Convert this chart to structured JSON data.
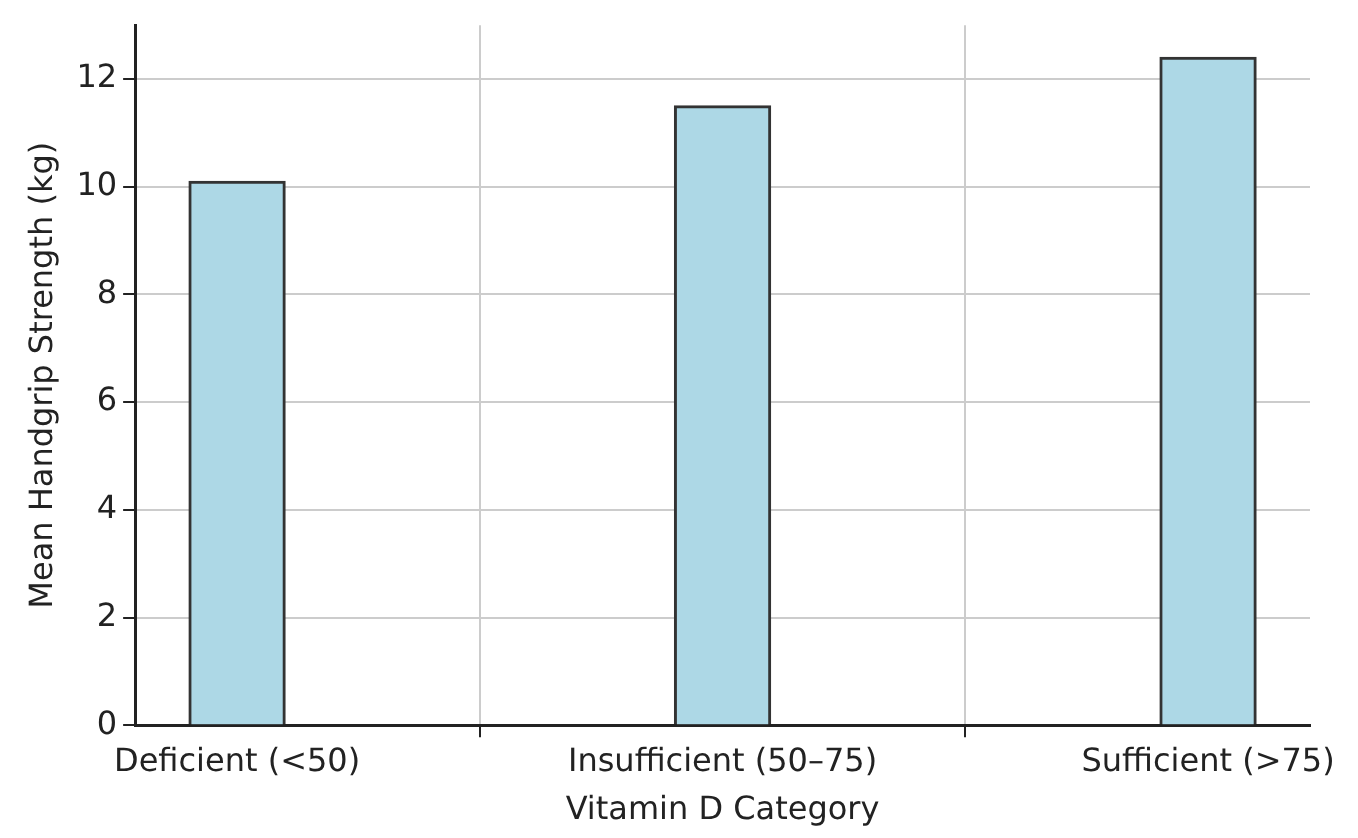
{
  "chart_data": {
    "type": "bar",
    "xlabel": "Vitamin D Category",
    "ylabel": "Mean Handgrip Strength (kg)",
    "categories": [
      "Deficient (<50)",
      "Insufficient (50–75)",
      "Sufficient (>75)"
    ],
    "values": [
      10.1,
      11.5,
      12.4
    ],
    "color": "#add8e6",
    "ylim": [
      0,
      13
    ],
    "yticks": [
      0,
      2,
      4,
      6,
      8,
      10,
      12
    ],
    "grid": true
  }
}
